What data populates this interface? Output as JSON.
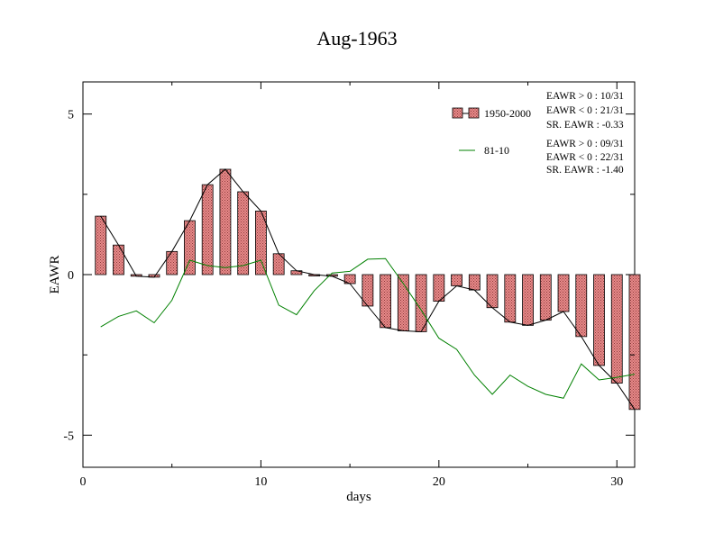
{
  "chart_data": {
    "type": "bar",
    "title": "Aug-1963",
    "xlabel": "days",
    "ylabel": "EAWR",
    "xlim": [
      0,
      31
    ],
    "ylim": [
      -6,
      6
    ],
    "x_ticks": [
      0,
      10,
      20,
      30
    ],
    "x_tick_labels": [
      "0",
      "10",
      "20",
      "30"
    ],
    "y_ticks": [
      -5,
      0,
      5
    ],
    "y_tick_labels": [
      "-5",
      "0",
      "5"
    ],
    "grid": false,
    "legend_position": "top-right",
    "x": [
      1,
      2,
      3,
      4,
      5,
      6,
      7,
      8,
      9,
      10,
      11,
      12,
      13,
      14,
      15,
      16,
      17,
      18,
      19,
      20,
      21,
      22,
      23,
      24,
      25,
      26,
      27,
      28,
      29,
      30,
      31
    ],
    "series": [
      {
        "name": "1950-2000",
        "type": "bar",
        "color": "#e88a8a",
        "values": [
          1.82,
          0.92,
          -0.05,
          -0.08,
          0.72,
          1.68,
          2.8,
          3.28,
          2.58,
          1.98,
          0.65,
          0.12,
          0.0,
          -0.05,
          -0.28,
          -0.98,
          -1.65,
          -1.75,
          -1.78,
          -0.83,
          -0.35,
          -0.48,
          -1.03,
          -1.48,
          -1.58,
          -1.42,
          -1.15,
          -1.93,
          -2.83,
          -3.38,
          -4.2
        ]
      },
      {
        "name": "81-10",
        "type": "line",
        "color": "#008000",
        "values": [
          -1.63,
          -1.3,
          -1.13,
          -1.5,
          -0.8,
          0.45,
          0.28,
          0.22,
          0.28,
          0.45,
          -0.95,
          -1.25,
          -0.5,
          0.05,
          0.1,
          0.48,
          0.5,
          -0.28,
          -1.1,
          -1.98,
          -2.33,
          -3.13,
          -3.73,
          -3.13,
          -3.48,
          -3.73,
          -3.85,
          -2.78,
          -3.28,
          -3.2,
          -3.1
        ]
      }
    ],
    "stats": [
      [
        "EAWR > 0 : 10/31",
        "EAWR < 0 : 21/31",
        "SR. EAWR : -0.33"
      ],
      [
        "EAWR > 0 : 09/31",
        "EAWR < 0 : 22/31",
        "SR. EAWR : -1.40"
      ]
    ]
  }
}
